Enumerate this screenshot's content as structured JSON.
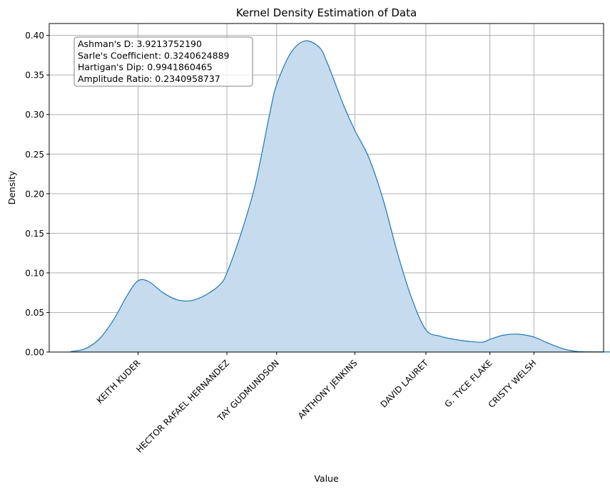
{
  "chart_data": {
    "type": "area",
    "title": "Kernel Density Estimation of Data",
    "xlabel": "Value",
    "ylabel": "Density",
    "ylim": [
      0,
      0.415
    ],
    "yticks": [
      0.0,
      0.05,
      0.1,
      0.15,
      0.2,
      0.25,
      0.3,
      0.35,
      0.4
    ],
    "ytick_labels": [
      "0.00",
      "0.05",
      "0.10",
      "0.15",
      "0.20",
      "0.25",
      "0.30",
      "0.35",
      "0.40"
    ],
    "xlim": [
      -3.0,
      75.0
    ],
    "xticks": [
      {
        "label": "KEITH KUDER",
        "x": 9.5
      },
      {
        "label": "HECTOR RAFAEL HERNANDEZ",
        "x": 22.0
      },
      {
        "label": "TAY GUDMUNDSON",
        "x": 29.0
      },
      {
        "label": "ANTHONY JENKINS",
        "x": 40.0
      },
      {
        "label": "DAVID LAURET",
        "x": 50.0
      },
      {
        "label": "G. TYCE FLAKE",
        "x": 59.0
      },
      {
        "label": "CRISTY WELSH",
        "x": 65.2
      }
    ],
    "grid": true,
    "series": [
      {
        "color": "#1f77b4",
        "fill": "#c6dcee",
        "x": [
          0.0,
          2.0,
          4.0,
          6.0,
          8.0,
          9.5,
          11.0,
          13.0,
          15.0,
          17.0,
          19.0,
          21.0,
          22.0,
          24.0,
          26.0,
          28.0,
          29.0,
          31.0,
          33.0,
          35.0,
          36.0,
          37.0,
          38.5,
          40.0,
          42.0,
          44.0,
          46.0,
          48.0,
          50.0,
          52.0,
          54.0,
          56.0,
          58.0,
          59.0,
          61.0,
          63.0,
          65.2,
          67.0,
          69.0,
          71.0,
          73.0,
          81.0
        ],
        "y": [
          0.0005,
          0.004,
          0.016,
          0.04,
          0.072,
          0.09,
          0.089,
          0.075,
          0.066,
          0.065,
          0.072,
          0.085,
          0.1,
          0.15,
          0.212,
          0.3,
          0.338,
          0.378,
          0.393,
          0.385,
          0.368,
          0.345,
          0.31,
          0.28,
          0.245,
          0.192,
          0.125,
          0.068,
          0.028,
          0.02,
          0.016,
          0.0135,
          0.0125,
          0.016,
          0.0215,
          0.0225,
          0.019,
          0.012,
          0.005,
          0.001,
          0.0002,
          0.0
        ]
      }
    ],
    "annotation": {
      "lines": [
        "Ashman's D: 3.9213752190",
        "Sarle's Coefficient: 0.3240624889",
        "Hartigan's Dip: 0.9941860465",
        "Amplitude Ratio: 0.2340958737"
      ],
      "position": "top-left"
    }
  }
}
